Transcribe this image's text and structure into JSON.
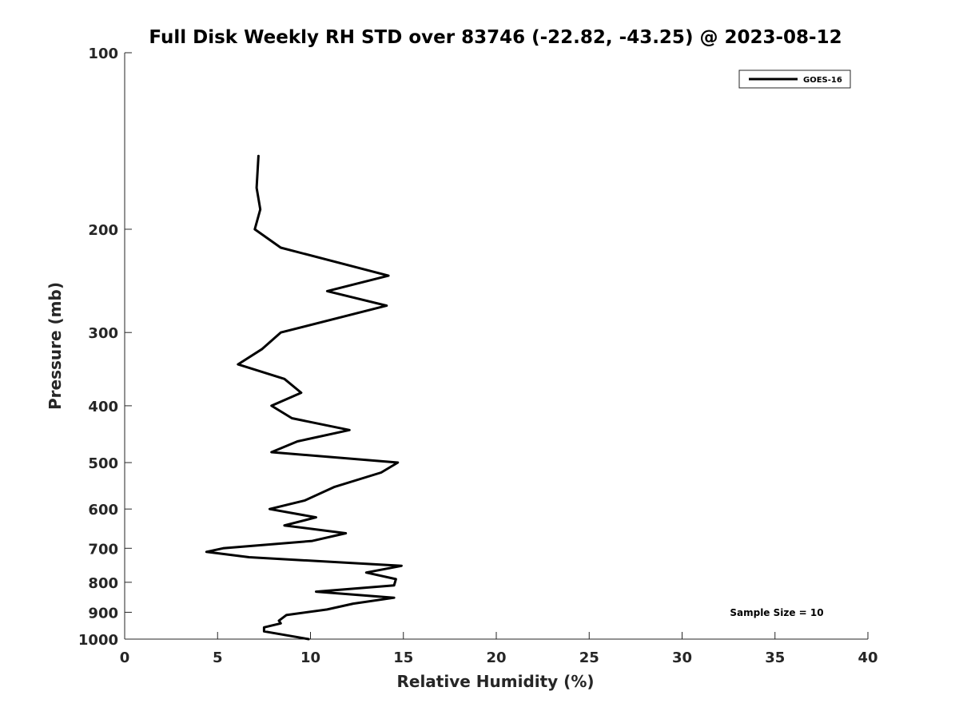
{
  "chart_data": {
    "type": "line",
    "title": "Full Disk Weekly RH STD over 83746 (-22.82, -43.25) @ 2023-08-12",
    "xlabel": "Relative Humidity (%)",
    "ylabel": "Pressure (mb)",
    "xlim": [
      0,
      40
    ],
    "ylim": [
      100,
      1000
    ],
    "y_scale": "log",
    "y_reversed": true,
    "grid": false,
    "legend_position": "top-right",
    "x_ticks": [
      0,
      5,
      10,
      15,
      20,
      25,
      30,
      35,
      40
    ],
    "y_ticks": [
      100,
      200,
      300,
      400,
      500,
      600,
      700,
      800,
      900,
      1000
    ],
    "series": [
      {
        "name": "GOES-16",
        "color": "#000000",
        "points": [
          [
            7.2,
            150
          ],
          [
            7.1,
            170
          ],
          [
            7.3,
            185
          ],
          [
            7.0,
            200
          ],
          [
            8.4,
            215
          ],
          [
            14.2,
            240
          ],
          [
            10.9,
            255
          ],
          [
            14.1,
            270
          ],
          [
            8.4,
            300
          ],
          [
            7.4,
            320
          ],
          [
            6.1,
            340
          ],
          [
            8.6,
            360
          ],
          [
            9.5,
            380
          ],
          [
            7.9,
            400
          ],
          [
            9.0,
            420
          ],
          [
            12.1,
            440
          ],
          [
            9.3,
            460
          ],
          [
            7.9,
            480
          ],
          [
            14.7,
            500
          ],
          [
            13.8,
            520
          ],
          [
            11.3,
            550
          ],
          [
            9.7,
            580
          ],
          [
            7.8,
            600
          ],
          [
            10.3,
            620
          ],
          [
            8.6,
            640
          ],
          [
            11.9,
            660
          ],
          [
            10.1,
            680
          ],
          [
            5.3,
            700
          ],
          [
            4.4,
            710
          ],
          [
            6.7,
            725
          ],
          [
            14.9,
            750
          ],
          [
            13.0,
            770
          ],
          [
            14.6,
            790
          ],
          [
            14.5,
            810
          ],
          [
            10.3,
            830
          ],
          [
            14.5,
            850
          ],
          [
            12.3,
            870
          ],
          [
            10.9,
            890
          ],
          [
            8.7,
            910
          ],
          [
            8.3,
            930
          ],
          [
            8.4,
            940
          ],
          [
            7.5,
            955
          ],
          [
            7.5,
            970
          ],
          [
            9.9,
            1000
          ]
        ]
      }
    ],
    "annotations": [
      "Sample Size = 10"
    ]
  }
}
